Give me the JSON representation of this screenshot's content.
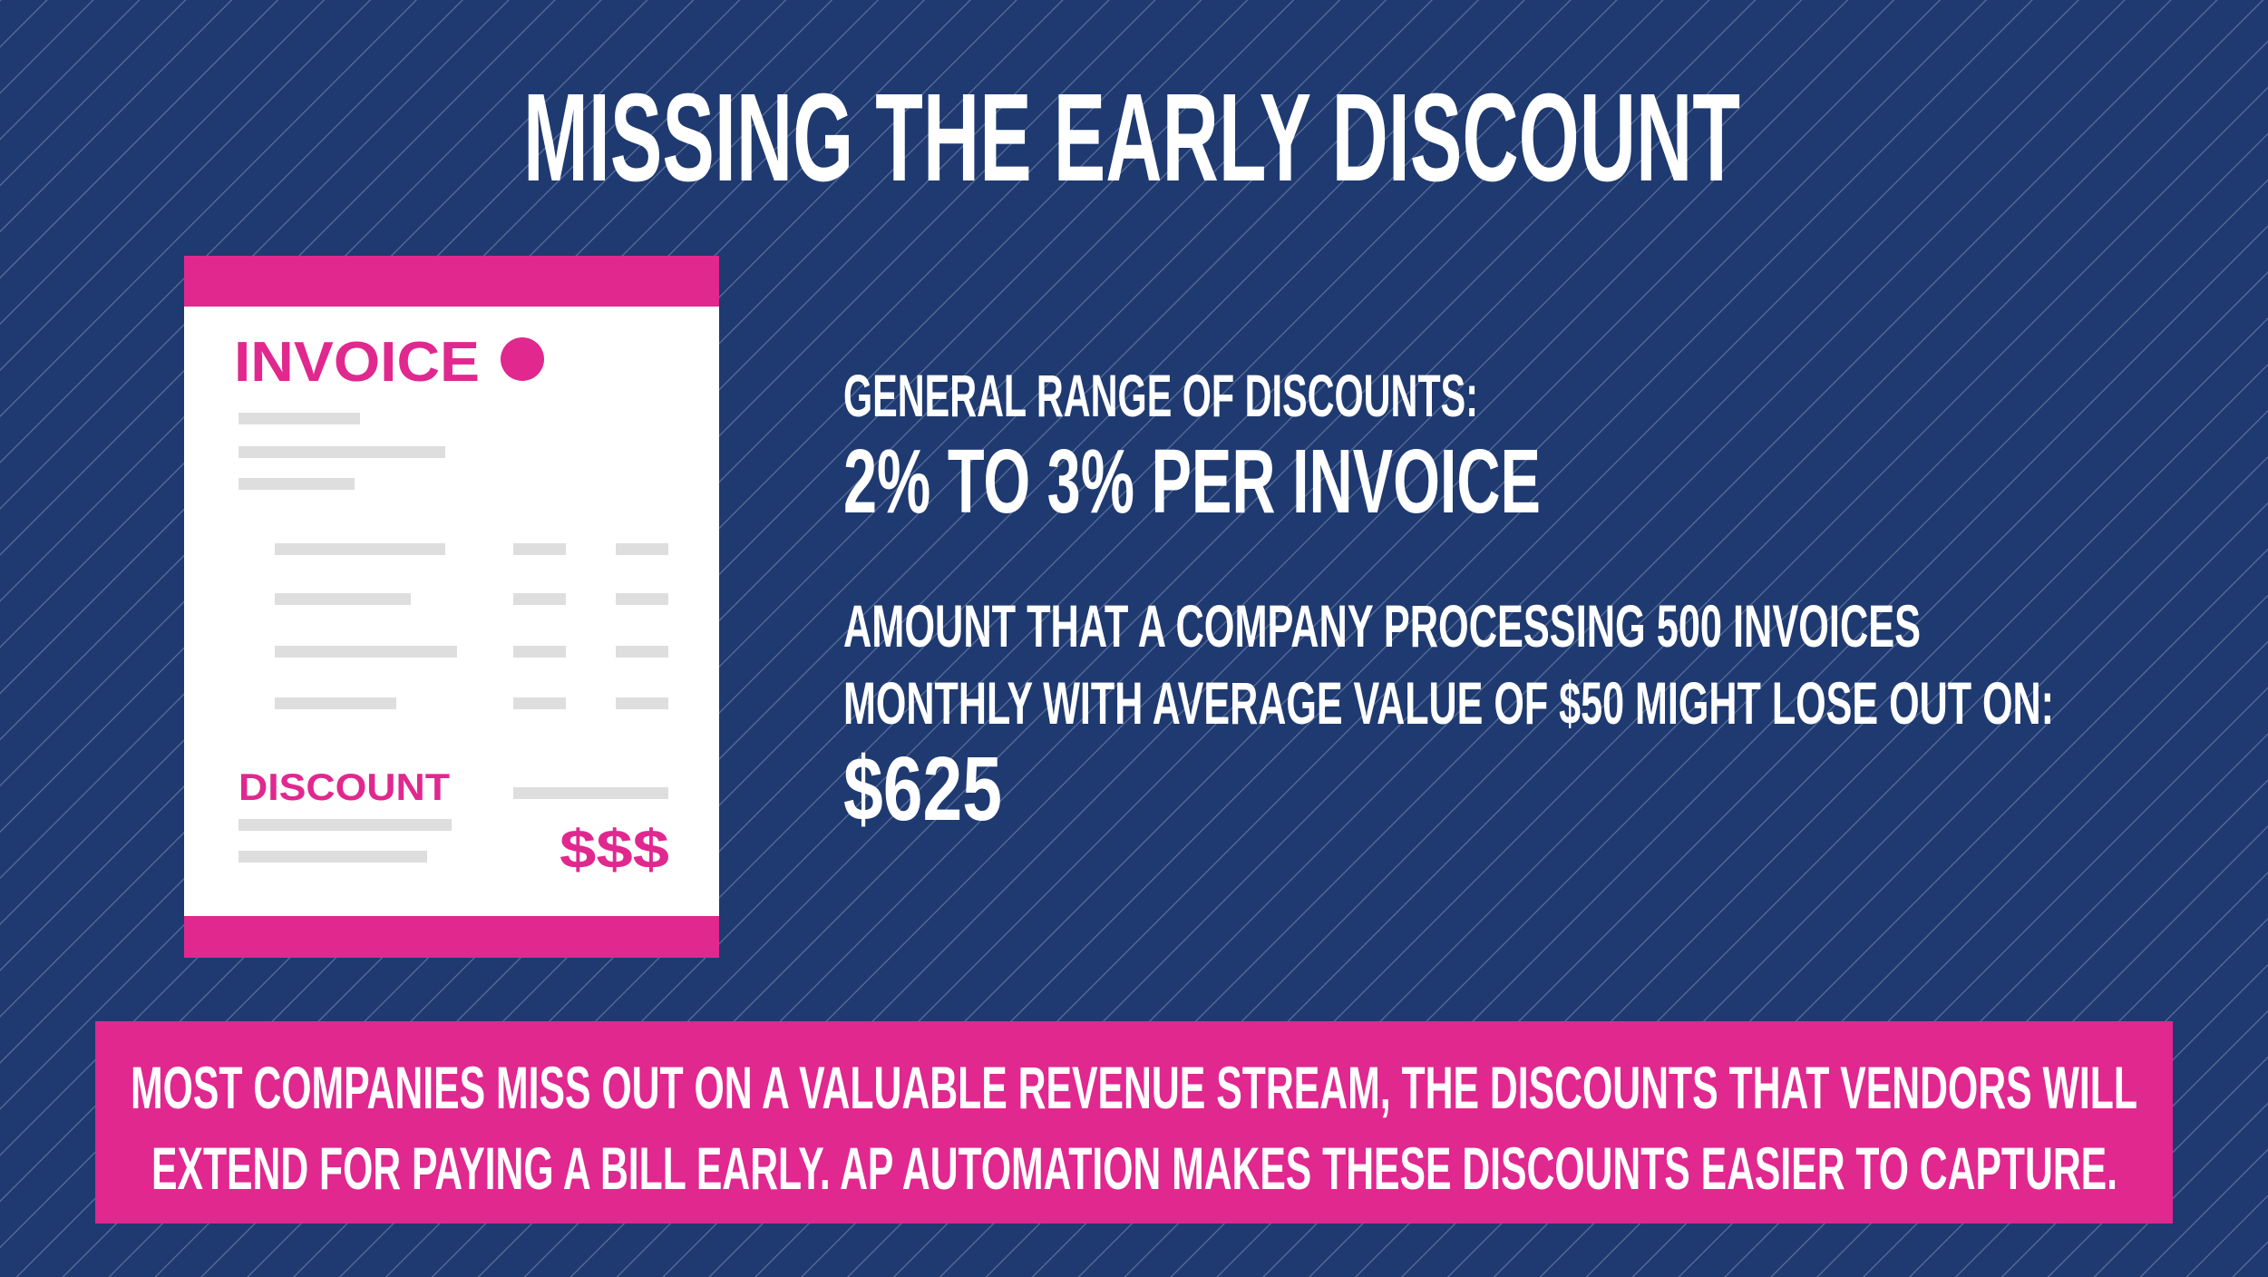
{
  "title": "MISSING THE EARLY DISCOUNT",
  "invoice": {
    "heading": "INVOICE",
    "discount_label": "DISCOUNT",
    "amount": "$$$"
  },
  "stats": [
    {
      "label": [
        "GENERAL RANGE OF DISCOUNTS:"
      ],
      "value": "2% TO 3% PER INVOICE"
    },
    {
      "label": [
        "AMOUNT THAT A COMPANY PROCESSING 500 INVOICES",
        "MONTHLY WITH AVERAGE VALUE OF $50 MIGHT LOSE OUT ON:"
      ],
      "value": "$625"
    }
  ],
  "footer": [
    "MOST COMPANIES MISS OUT ON A VALUABLE REVENUE STREAM, THE DISCOUNTS THAT VENDORS WILL",
    "EXTEND FOR PAYING A BILL EARLY. AP AUTOMATION MAKES THESE DISCOUNTS EASIER TO CAPTURE."
  ]
}
